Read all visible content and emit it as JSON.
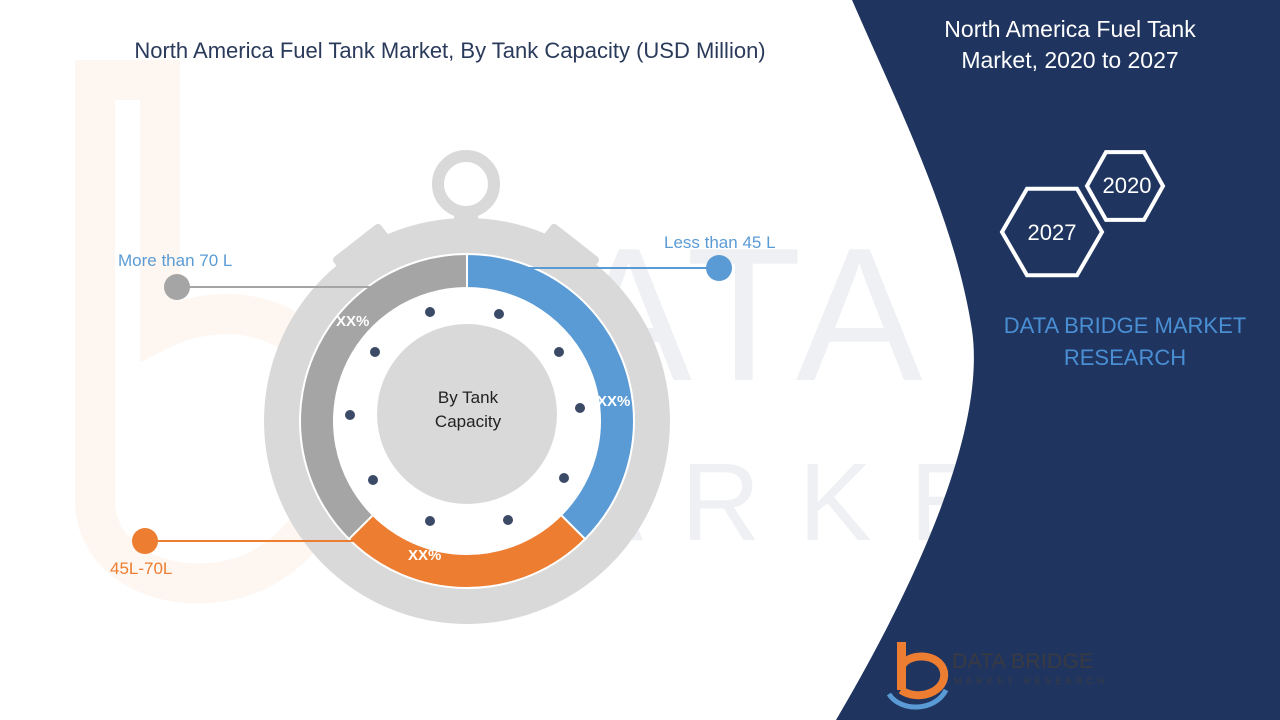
{
  "header": {
    "title": "North America Fuel Tank Market, By Tank Capacity (USD Million)"
  },
  "side_panel": {
    "title_line1": "North America Fuel Tank",
    "title_line2": "Market, 2020 to 2027",
    "hex_top": "2020",
    "hex_bottom": "2027",
    "brand_line1": "DATA BRIDGE MARKET",
    "brand_line2": "RESEARCH"
  },
  "logo": {
    "name": "DATA BRIDGE",
    "sub": "MARKET RESEARCH"
  },
  "chart_data": {
    "type": "pie",
    "title": "North America Fuel Tank Market, By Tank Capacity (USD Million)",
    "center_label_line1": "By Tank",
    "center_label_line2": "Capacity",
    "segments": [
      {
        "label": "Less than 45 L",
        "value_label": "XX%",
        "share": 0.375,
        "color": "#5b9bd5"
      },
      {
        "label": "45L-70L",
        "value_label": "XX%",
        "share": 0.25,
        "color": "#ed7d31"
      },
      {
        "label": "More than 70 L",
        "value_label": "XX%",
        "share": 0.375,
        "color": "#a5a5a5"
      }
    ]
  },
  "colors": {
    "navy_panel": "#1f3560",
    "blue": "#5b9bd5",
    "orange": "#ed7d31",
    "gray": "#a5a5a5",
    "stopwatch_gray": "#d9d9d9"
  }
}
